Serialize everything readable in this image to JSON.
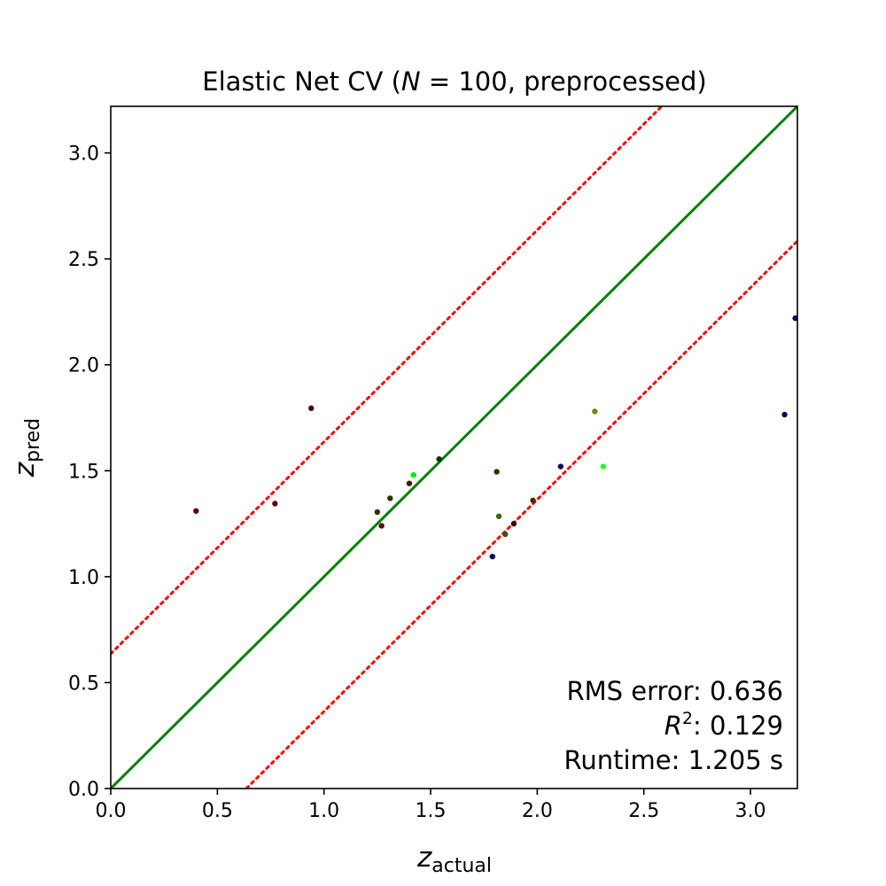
{
  "chart_data": {
    "type": "scatter",
    "title": {
      "prefix": "Elastic Net CV (",
      "italic": "N",
      "suffix": " = 100, preprocessed)"
    },
    "xlabel": {
      "main": "z",
      "sub": "actual"
    },
    "ylabel": {
      "main": "z",
      "sub": "pred"
    },
    "xlim": [
      0,
      3.22
    ],
    "ylim": [
      0,
      3.22
    ],
    "x_ticks": [
      0.0,
      0.5,
      1.0,
      1.5,
      2.0,
      2.5,
      3.0
    ],
    "y_ticks": [
      0.0,
      0.5,
      1.0,
      1.5,
      2.0,
      2.5,
      3.0
    ],
    "x_tick_labels": [
      "0.0",
      "0.5",
      "1.0",
      "1.5",
      "2.0",
      "2.5",
      "3.0"
    ],
    "y_tick_labels": [
      "0.0",
      "0.5",
      "1.0",
      "1.5",
      "2.0",
      "2.5",
      "3.0"
    ],
    "grid": false,
    "identity_line": {
      "slope": 1,
      "intercept": 0,
      "color": "#008000"
    },
    "error_band_lines": {
      "offset": 0.636,
      "color": "#ff0000",
      "style": "dotted"
    },
    "points": [
      {
        "x": 0.4,
        "y": 1.31,
        "color": "#5a0a0a"
      },
      {
        "x": 0.77,
        "y": 1.345,
        "color": "#5a0a0a"
      },
      {
        "x": 0.94,
        "y": 1.795,
        "color": "#4a0a0a"
      },
      {
        "x": 1.25,
        "y": 1.305,
        "color": "#3c2a00"
      },
      {
        "x": 1.27,
        "y": 1.24,
        "color": "#5a0a0a"
      },
      {
        "x": 1.31,
        "y": 1.37,
        "color": "#3c2a00"
      },
      {
        "x": 1.4,
        "y": 1.44,
        "color": "#3a1a00"
      },
      {
        "x": 1.42,
        "y": 1.48,
        "color": "#00ee00"
      },
      {
        "x": 1.54,
        "y": 1.555,
        "color": "#1e2a00"
      },
      {
        "x": 1.79,
        "y": 1.095,
        "color": "#0a0a5a"
      },
      {
        "x": 1.81,
        "y": 1.495,
        "color": "#1e3a00"
      },
      {
        "x": 1.82,
        "y": 1.285,
        "color": "#3a6a00"
      },
      {
        "x": 1.85,
        "y": 1.2,
        "color": "#4a4a00"
      },
      {
        "x": 1.89,
        "y": 1.25,
        "color": "#3a0a0a"
      },
      {
        "x": 1.98,
        "y": 1.36,
        "color": "#5a1a0a"
      },
      {
        "x": 2.11,
        "y": 1.52,
        "color": "#0a0a4a"
      },
      {
        "x": 2.27,
        "y": 1.78,
        "color": "#6a8a00"
      },
      {
        "x": 2.31,
        "y": 1.52,
        "color": "#22ff22"
      },
      {
        "x": 3.16,
        "y": 1.765,
        "color": "#0a0a5a"
      },
      {
        "x": 3.21,
        "y": 2.22,
        "color": "#0a0a5a"
      }
    ],
    "annotations": [
      {
        "label": "RMS error: ",
        "label_italic": "",
        "label_super": "",
        "label_tail": "",
        "value": "0.636"
      },
      {
        "label": "",
        "label_italic": "R",
        "label_super": "2",
        "label_tail": ": ",
        "value": "0.129"
      },
      {
        "label": "Runtime: ",
        "label_italic": "",
        "label_super": "",
        "label_tail": "",
        "value": "1.205 s"
      }
    ]
  }
}
